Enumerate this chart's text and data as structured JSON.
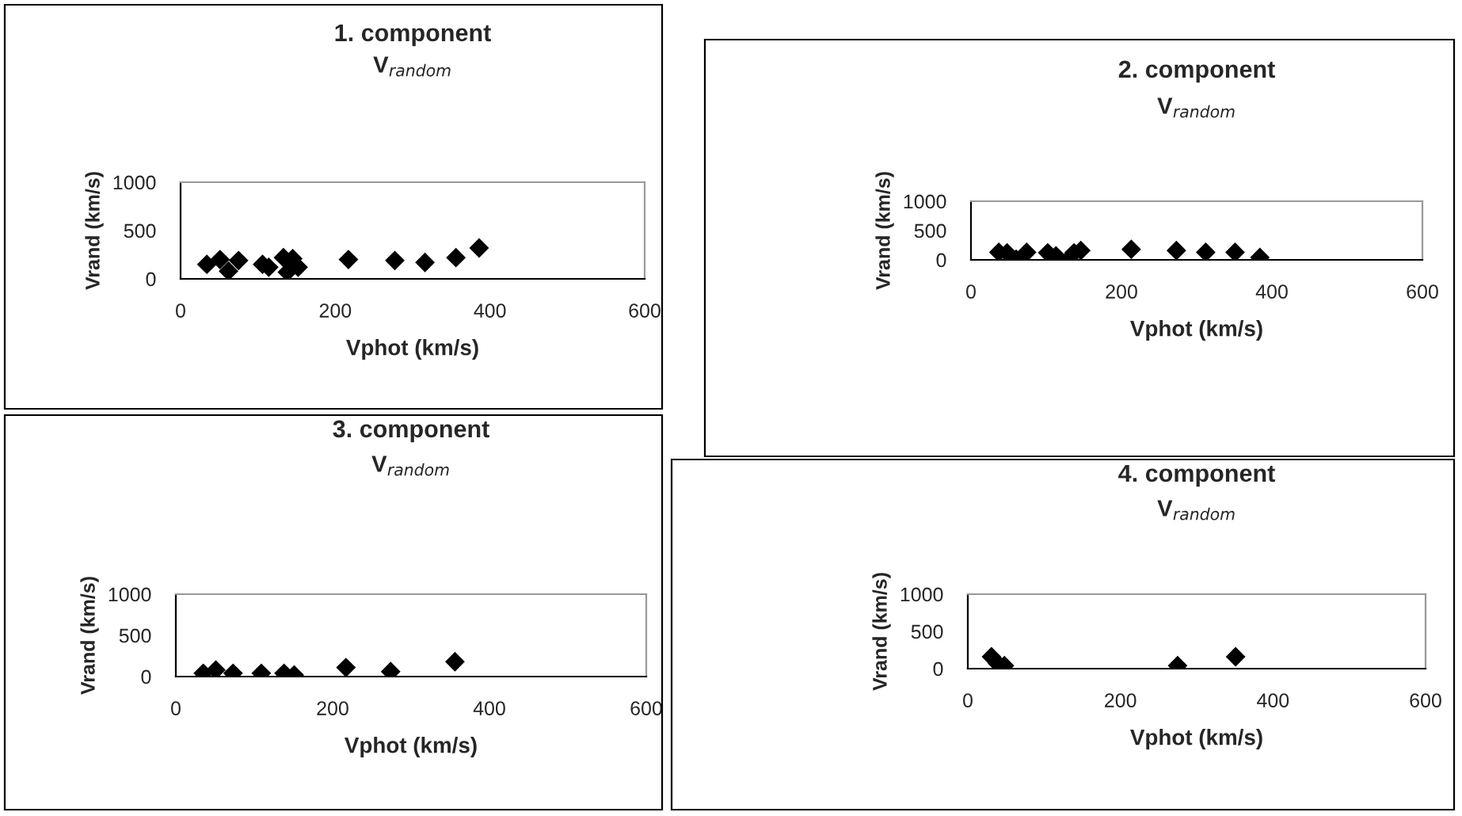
{
  "chart_data": [
    {
      "type": "scatter",
      "title": "1. component",
      "subtitle": "V$_{random}$",
      "xlabel": "Vphot (km/s)",
      "ylabel": "Vrand (km/s)",
      "marker": "diamond",
      "grid": false,
      "xlim": [
        0,
        600
      ],
      "xticks": [
        0,
        200,
        400,
        600
      ],
      "ylim": [
        0,
        1000
      ],
      "yticks": [
        0,
        500,
        1000
      ],
      "series": [
        {
          "color": "#000000",
          "x": [
            34,
            51,
            62,
            75,
            106,
            114,
            133,
            138,
            145,
            152,
            217,
            277,
            316,
            356,
            386
          ],
          "values": [
            150,
            200,
            80,
            190,
            150,
            120,
            220,
            70,
            210,
            120,
            200,
            190,
            170,
            220,
            320
          ]
        }
      ]
    },
    {
      "type": "scatter",
      "title": "2. component",
      "subtitle": "V$_{random}$",
      "xlabel": "Vphot (km/s)",
      "ylabel": "Vrand (km/s)",
      "marker": "diamond",
      "grid": false,
      "xlim": [
        0,
        600
      ],
      "xticks": [
        0,
        200,
        400,
        600
      ],
      "ylim": [
        0,
        1000
      ],
      "yticks": [
        0,
        500,
        1000
      ],
      "series": [
        {
          "color": "#000000",
          "x": [
            37,
            48,
            60,
            74,
            102,
            113,
            130,
            137,
            146,
            213,
            273,
            312,
            351,
            384
          ],
          "values": [
            130,
            120,
            10,
            130,
            120,
            70,
            10,
            120,
            160,
            180,
            160,
            130,
            130,
            40
          ]
        }
      ]
    },
    {
      "type": "scatter",
      "title": "3. component",
      "subtitle": "V$_{random}$",
      "xlabel": "Vphot (km/s)",
      "ylabel": "Vrand (km/s)",
      "marker": "diamond",
      "grid": false,
      "xlim": [
        0,
        600
      ],
      "xticks": [
        0,
        200,
        400,
        600
      ],
      "ylim": [
        0,
        1000
      ],
      "yticks": [
        0,
        500,
        1000
      ],
      "series": [
        {
          "color": "#000000",
          "x": [
            35,
            51,
            73,
            109,
            138,
            151,
            217,
            274,
            356
          ],
          "values": [
            40,
            80,
            40,
            40,
            40,
            20,
            110,
            60,
            180
          ]
        }
      ]
    },
    {
      "type": "scatter",
      "title": "4. component",
      "subtitle": "V$_{random}$",
      "xlabel": "Vphot (km/s)",
      "ylabel": "Vrand (km/s)",
      "marker": "diamond",
      "grid": false,
      "xlim": [
        0,
        600
      ],
      "xticks": [
        0,
        200,
        400,
        600
      ],
      "ylim": [
        0,
        1000
      ],
      "yticks": [
        0,
        500,
        1000
      ],
      "series": [
        {
          "color": "#000000",
          "x": [
            31,
            39,
            48,
            275,
            351
          ],
          "values": [
            160,
            70,
            40,
            40,
            160
          ]
        }
      ]
    }
  ]
}
